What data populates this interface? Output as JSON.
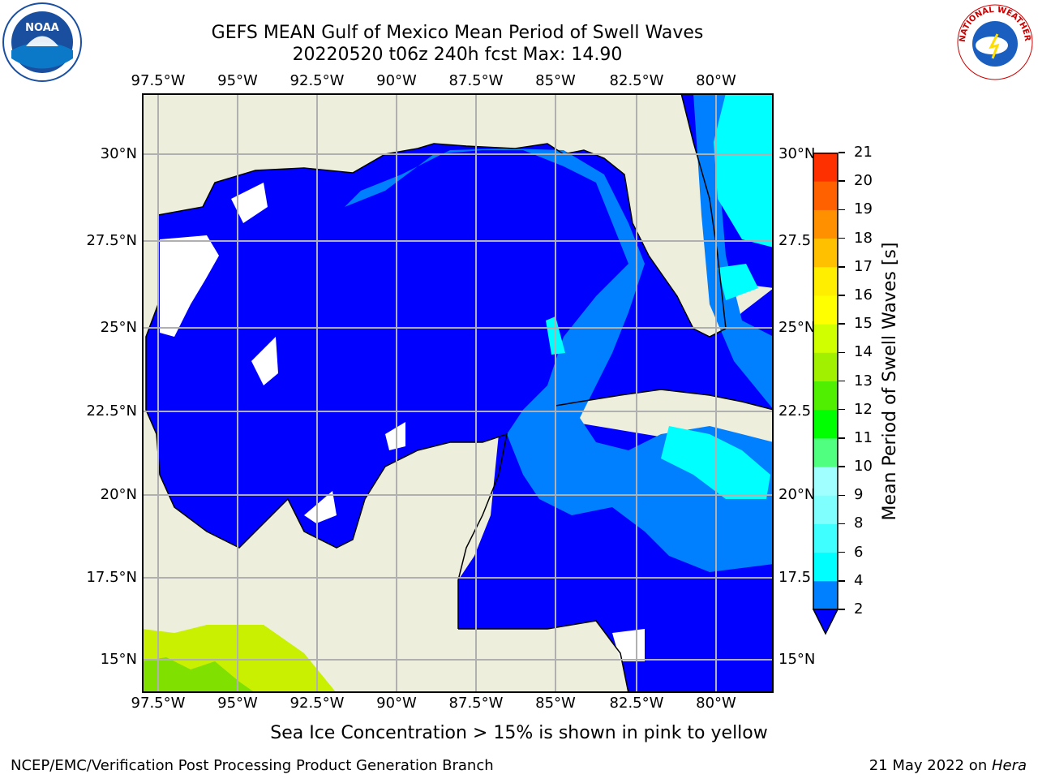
{
  "title": {
    "line1": "GEFS MEAN Gulf of Mexico Mean Period of Swell Waves",
    "line2": "20220520 t06z 240h fcst   Max: 14.90"
  },
  "map": {
    "lon_labels": [
      "97.5°W",
      "95°W",
      "92.5°W",
      "90°W",
      "87.5°W",
      "85°W",
      "82.5°W",
      "80°W"
    ],
    "lat_labels": [
      "30°N",
      "27.5°N",
      "25°N",
      "22.5°N",
      "20°N",
      "17.5°N",
      "15°N"
    ],
    "lat_labels_right": [
      "30°N",
      "27.5",
      "25°N",
      "22.5",
      "20°N",
      "17.5",
      "15°N"
    ],
    "colors": {
      "land": "#eeeedd",
      "ocean_blue": "#0000ff",
      "mid_blue": "#0080ff",
      "cyan": "#00ffff",
      "grid": "#b0b0b0"
    }
  },
  "colorbar": {
    "label": "Mean Period of Swell Waves [s]",
    "ticks": [
      "2",
      "4",
      "6",
      "8",
      "9",
      "10",
      "11",
      "12",
      "13",
      "14",
      "15",
      "16",
      "17",
      "18",
      "19",
      "20",
      "21"
    ],
    "colors": [
      "#0080ff",
      "#00ffff",
      "#40ffff",
      "#80ffff",
      "#a0ffff",
      "#50ff80",
      "#00ff00",
      "#50ee00",
      "#a0f000",
      "#d0ff00",
      "#ffff00",
      "#ffee00",
      "#ffc000",
      "#ff9000",
      "#ff6000",
      "#ff3000",
      "#ff0000"
    ]
  },
  "note": "Sea Ice Concentration > 15% is shown in pink to yellow",
  "footer": {
    "left": "NCEP/EMC/Verification Post Processing Product Generation Branch",
    "right_date": "21 May 2022 on ",
    "right_machine": "Hera"
  },
  "logos": {
    "noaa_text": "NOAA",
    "nws_text": "NATIONAL WEATHER SERVICE"
  }
}
